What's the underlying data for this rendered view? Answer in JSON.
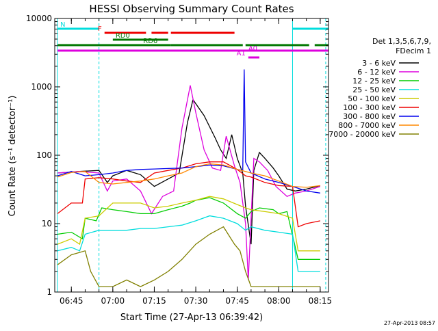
{
  "chart_data": {
    "type": "line",
    "title": "HESSI Observing Summary Count Rates",
    "xlabel": "Start Time (27-Apr-13 06:39:42)",
    "ylabel": "Count Rate (s⁻¹ detector⁻¹)",
    "y_scale": "log",
    "ylim": [
      1,
      10000
    ],
    "xlim": [
      "06:39:42",
      "08:18:00"
    ],
    "x_ticks": [
      "06:45",
      "07:00",
      "07:15",
      "07:30",
      "07:45",
      "08:00",
      "08:15"
    ],
    "y_ticks": [
      "1",
      "10",
      "100",
      "1000",
      "10000"
    ],
    "grid": false,
    "legend_placement": "right",
    "legend_title": [
      "Det 1,3,5,6,7,9,",
      "FDecim 1"
    ],
    "timestamp": "27-Apr-2013 08:57",
    "series": [
      {
        "name": "3 - 6 keV",
        "color": "#000000",
        "points": [
          [
            "06:40",
            55
          ],
          [
            "06:48",
            58
          ],
          [
            "06:55",
            60
          ],
          [
            "06:58",
            40
          ],
          [
            "07:00",
            50
          ],
          [
            "07:05",
            60
          ],
          [
            "07:10",
            52
          ],
          [
            "07:15",
            35
          ],
          [
            "07:20",
            45
          ],
          [
            "07:24",
            55
          ],
          [
            "07:27",
            300
          ],
          [
            "07:29",
            650
          ],
          [
            "07:33",
            380
          ],
          [
            "07:37",
            180
          ],
          [
            "07:39",
            120
          ],
          [
            "07:41",
            90
          ],
          [
            "07:43",
            200
          ],
          [
            "07:45",
            90
          ],
          [
            "07:47",
            55
          ],
          [
            "07:48",
            18
          ],
          [
            "07:50",
            5
          ],
          [
            "07:51",
            60
          ],
          [
            "07:53",
            110
          ],
          [
            "07:55",
            90
          ],
          [
            "07:58",
            65
          ],
          [
            "08:00",
            50
          ],
          [
            "08:03",
            32
          ],
          [
            "08:06",
            30
          ],
          [
            "08:10",
            32
          ],
          [
            "08:15",
            36
          ]
        ]
      },
      {
        "name": "6 - 12 keV",
        "color": "#dd00dd",
        "points": [
          [
            "06:40",
            55
          ],
          [
            "06:48",
            58
          ],
          [
            "06:55",
            55
          ],
          [
            "06:58",
            30
          ],
          [
            "07:00",
            42
          ],
          [
            "07:05",
            45
          ],
          [
            "07:10",
            30
          ],
          [
            "07:14",
            14
          ],
          [
            "07:18",
            25
          ],
          [
            "07:22",
            30
          ],
          [
            "07:25",
            250
          ],
          [
            "07:28",
            1050
          ],
          [
            "07:30",
            420
          ],
          [
            "07:33",
            120
          ],
          [
            "07:36",
            65
          ],
          [
            "07:39",
            60
          ],
          [
            "07:41",
            190
          ],
          [
            "07:44",
            70
          ],
          [
            "07:46",
            40
          ],
          [
            "07:48",
            10
          ],
          [
            "07:49",
            1.5
          ],
          [
            "07:51",
            90
          ],
          [
            "07:53",
            80
          ],
          [
            "07:56",
            60
          ],
          [
            "07:59",
            35
          ],
          [
            "08:03",
            25
          ],
          [
            "08:06",
            28
          ],
          [
            "08:10",
            30
          ],
          [
            "08:15",
            35
          ]
        ]
      },
      {
        "name": "12 - 25 keV",
        "color": "#00cc00",
        "points": [
          [
            "06:40",
            7
          ],
          [
            "06:45",
            7.5
          ],
          [
            "06:49",
            6
          ],
          [
            "06:50",
            12
          ],
          [
            "06:54",
            11
          ],
          [
            "06:56",
            17
          ],
          [
            "07:00",
            16
          ],
          [
            "07:05",
            15
          ],
          [
            "07:10",
            14
          ],
          [
            "07:15",
            14
          ],
          [
            "07:20",
            16
          ],
          [
            "07:25",
            18
          ],
          [
            "07:28",
            20
          ],
          [
            "07:30",
            22
          ],
          [
            "07:35",
            24
          ],
          [
            "07:40",
            20
          ],
          [
            "07:45",
            14
          ],
          [
            "07:48",
            12
          ],
          [
            "07:50",
            15
          ],
          [
            "07:53",
            17
          ],
          [
            "07:58",
            16
          ],
          [
            "08:00",
            14
          ],
          [
            "08:03",
            15
          ],
          [
            "08:07",
            3
          ],
          [
            "08:10",
            3
          ],
          [
            "08:15",
            3
          ]
        ]
      },
      {
        "name": "25 - 50 keV",
        "color": "#00dddd",
        "points": [
          [
            "06:40",
            4
          ],
          [
            "06:45",
            4.5
          ],
          [
            "06:48",
            4
          ],
          [
            "06:50",
            7
          ],
          [
            "06:55",
            8
          ],
          [
            "07:00",
            8
          ],
          [
            "07:05",
            8
          ],
          [
            "07:10",
            8.5
          ],
          [
            "07:15",
            8.5
          ],
          [
            "07:20",
            9
          ],
          [
            "07:25",
            9.5
          ],
          [
            "07:30",
            11
          ],
          [
            "07:35",
            13
          ],
          [
            "07:40",
            12
          ],
          [
            "07:45",
            10
          ],
          [
            "07:48",
            8
          ],
          [
            "07:50",
            9
          ],
          [
            "07:55",
            8
          ],
          [
            "08:00",
            7.5
          ],
          [
            "08:05",
            7
          ],
          [
            "08:07",
            2
          ],
          [
            "08:10",
            2
          ],
          [
            "08:15",
            2
          ]
        ]
      },
      {
        "name": "50 - 100 keV",
        "color": "#cccc00",
        "points": [
          [
            "06:40",
            5
          ],
          [
            "06:45",
            6
          ],
          [
            "06:48",
            5
          ],
          [
            "06:50",
            12
          ],
          [
            "06:55",
            13
          ],
          [
            "07:00",
            20
          ],
          [
            "07:05",
            20
          ],
          [
            "07:10",
            20
          ],
          [
            "07:15",
            17
          ],
          [
            "07:20",
            18
          ],
          [
            "07:25",
            20
          ],
          [
            "07:30",
            22
          ],
          [
            "07:35",
            25
          ],
          [
            "07:40",
            23
          ],
          [
            "07:45",
            19
          ],
          [
            "07:48",
            17
          ],
          [
            "07:50",
            16
          ],
          [
            "07:55",
            15
          ],
          [
            "08:00",
            14
          ],
          [
            "08:05",
            12
          ],
          [
            "08:07",
            4
          ],
          [
            "08:10",
            4
          ],
          [
            "08:15",
            4
          ]
        ]
      },
      {
        "name": "100 - 300 keV",
        "color": "#ee0000",
        "points": [
          [
            "06:40",
            14
          ],
          [
            "06:45",
            20
          ],
          [
            "06:49",
            20
          ],
          [
            "06:50",
            45
          ],
          [
            "06:55",
            47
          ],
          [
            "07:00",
            45
          ],
          [
            "07:05",
            42
          ],
          [
            "07:10",
            40
          ],
          [
            "07:15",
            55
          ],
          [
            "07:20",
            60
          ],
          [
            "07:25",
            65
          ],
          [
            "07:30",
            75
          ],
          [
            "07:35",
            80
          ],
          [
            "07:40",
            80
          ],
          [
            "07:45",
            62
          ],
          [
            "07:48",
            50
          ],
          [
            "07:50",
            48
          ],
          [
            "07:55",
            40
          ],
          [
            "08:00",
            36
          ],
          [
            "08:05",
            35
          ],
          [
            "08:07",
            9
          ],
          [
            "08:10",
            10
          ],
          [
            "08:15",
            11
          ]
        ]
      },
      {
        "name": "300 - 800 keV",
        "color": "#0000ee",
        "points": [
          [
            "06:40",
            50
          ],
          [
            "06:45",
            58
          ],
          [
            "06:50",
            50
          ],
          [
            "06:55",
            52
          ],
          [
            "07:00",
            55
          ],
          [
            "07:05",
            60
          ],
          [
            "07:10",
            62
          ],
          [
            "07:15",
            63
          ],
          [
            "07:20",
            64
          ],
          [
            "07:25",
            65
          ],
          [
            "07:30",
            68
          ],
          [
            "07:35",
            72
          ],
          [
            "07:40",
            70
          ],
          [
            "07:45",
            62
          ],
          [
            "07:47",
            60
          ],
          [
            "07:47.5",
            1800
          ],
          [
            "07:48",
            80
          ],
          [
            "07:50",
            55
          ],
          [
            "07:55",
            45
          ],
          [
            "08:00",
            40
          ],
          [
            "08:05",
            35
          ],
          [
            "08:10",
            30
          ],
          [
            "08:15",
            28
          ]
        ]
      },
      {
        "name": "800 - 7000 keV",
        "color": "#ff8800",
        "points": [
          [
            "06:40",
            48
          ],
          [
            "06:45",
            56
          ],
          [
            "06:50",
            58
          ],
          [
            "06:55",
            40
          ],
          [
            "07:00",
            38
          ],
          [
            "07:05",
            40
          ],
          [
            "07:10",
            42
          ],
          [
            "07:15",
            45
          ],
          [
            "07:20",
            50
          ],
          [
            "07:25",
            55
          ],
          [
            "07:30",
            68
          ],
          [
            "07:35",
            75
          ],
          [
            "07:40",
            72
          ],
          [
            "07:45",
            62
          ],
          [
            "07:48",
            58
          ],
          [
            "07:50",
            55
          ],
          [
            "07:55",
            50
          ],
          [
            "08:00",
            42
          ],
          [
            "08:05",
            35
          ],
          [
            "08:10",
            34
          ],
          [
            "08:15",
            36
          ]
        ]
      },
      {
        "name": "7000 - 20000 keV",
        "color": "#808000",
        "points": [
          [
            "06:40",
            2.5
          ],
          [
            "06:45",
            3.5
          ],
          [
            "06:50",
            4
          ],
          [
            "06:52",
            2
          ],
          [
            "06:55",
            1.2
          ],
          [
            "07:00",
            1.2
          ],
          [
            "07:05",
            1.5
          ],
          [
            "07:10",
            1.2
          ],
          [
            "07:15",
            1.5
          ],
          [
            "07:20",
            2
          ],
          [
            "07:25",
            3
          ],
          [
            "07:30",
            5
          ],
          [
            "07:35",
            7
          ],
          [
            "07:40",
            9
          ],
          [
            "07:44",
            5
          ],
          [
            "07:46",
            4
          ],
          [
            "07:48",
            2
          ],
          [
            "07:50",
            1.2
          ],
          [
            "07:55",
            1.2
          ],
          [
            "08:00",
            1.2
          ],
          [
            "08:05",
            1.2
          ],
          [
            "08:10",
            1.2
          ],
          [
            "08:15",
            1.2
          ]
        ]
      }
    ],
    "state_bars": [
      {
        "label": "N",
        "color": "#00dddd",
        "segments": [
          [
            "06:40",
            "06:55"
          ],
          [
            "08:05",
            "08:18"
          ]
        ]
      },
      {
        "label": "F",
        "color": "#ee0000",
        "segments": [
          [
            "06:57",
            "07:12"
          ],
          [
            "07:14",
            "07:20"
          ],
          [
            "07:21",
            "07:44"
          ]
        ]
      },
      {
        "label": "RD0",
        "color": "#007700",
        "segments": [
          [
            "07:00",
            "07:20"
          ]
        ]
      },
      {
        "label": "RD6",
        "color": "#007700",
        "segments": [
          [
            "06:40",
            "07:21"
          ],
          [
            "07:21",
            "07:47"
          ],
          [
            "07:48",
            "08:11"
          ],
          [
            "08:13",
            "08:18"
          ]
        ]
      },
      {
        "label": "A0",
        "color": "#dd00dd",
        "segments": [
          [
            "06:40",
            "08:18"
          ]
        ]
      },
      {
        "label": "A1",
        "color": "#dd00dd",
        "segments": [
          [
            "07:49",
            "07:53"
          ]
        ]
      }
    ],
    "markers": [
      {
        "color": "#00dddd",
        "style": "solid",
        "time": "06:40"
      },
      {
        "color": "#00dddd",
        "style": "dashed",
        "time": "06:55"
      },
      {
        "color": "#00dddd",
        "style": "solid",
        "time": "08:05"
      },
      {
        "color": "#00dddd",
        "style": "dashed",
        "time": "08:17"
      }
    ]
  }
}
